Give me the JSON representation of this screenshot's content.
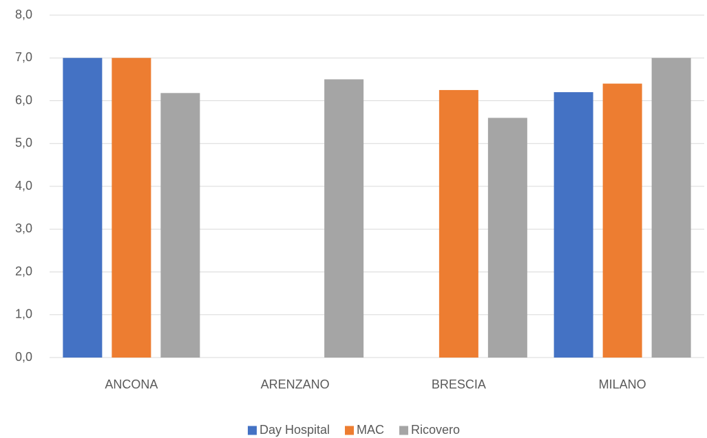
{
  "chart_data": {
    "type": "bar",
    "categories": [
      "ANCONA",
      "ARENZANO",
      "BRESCIA",
      "MILANO"
    ],
    "series": [
      {
        "name": "Day Hospital",
        "color": "#4472C4",
        "values": [
          7.0,
          null,
          null,
          6.2
        ]
      },
      {
        "name": "MAC",
        "color": "#ED7D31",
        "values": [
          7.0,
          null,
          6.25,
          6.4
        ]
      },
      {
        "name": "Ricovero",
        "color": "#A5A5A5",
        "values": [
          6.18,
          6.5,
          5.6,
          7.0
        ]
      }
    ],
    "ylim": [
      0,
      8
    ],
    "yticks": [
      "0,0",
      "1,0",
      "2,0",
      "3,0",
      "4,0",
      "5,0",
      "6,0",
      "7,0",
      "8,0"
    ],
    "grid": true,
    "legend_position": "bottom",
    "gridline_color": "#D9D9D9"
  }
}
